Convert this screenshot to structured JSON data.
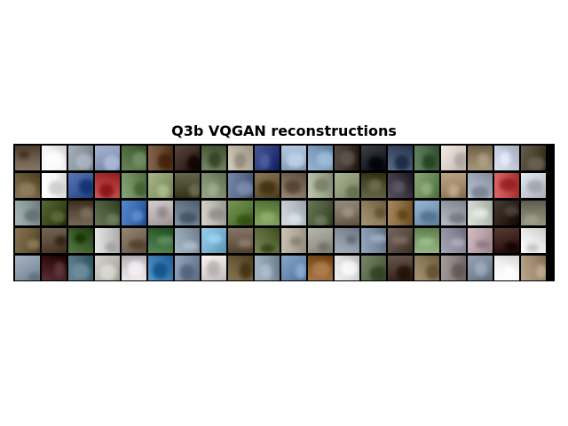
{
  "title": "Q3b VQGAN reconstructions",
  "grid": {
    "rows": 5,
    "columns": 20,
    "tiles": [
      [
        "#6a5a4a",
        "#f0f0f0",
        "#8a94a0",
        "#8c98b8",
        "#4e6a3e",
        "#6a4a30",
        "#3a2a22",
        "#5a6a4a",
        "#b8b0a0",
        "#2a3a7a",
        "#9ab0c8",
        "#7a9ab8",
        "#3a3028",
        "#20242a",
        "#40506a",
        "#4a6a4a",
        "#d8d0c8",
        "#8a7a60",
        "#c0c8d8",
        "#4a4030"
      ],
      [
        "#6a5a3a",
        "#f6f6f6",
        "#3a5a9a",
        "#b03a3a",
        "#6a8a5a",
        "#8a9a6a",
        "#4a4a30",
        "#7a8a6a",
        "#5a6a8a",
        "#6a5a3a",
        "#7a6a58",
        "#a0a890",
        "#909878",
        "#4a4a2a",
        "#3a3440",
        "#6a8a5a",
        "#a08a6a",
        "#a0a8b8",
        "#c04a4a",
        "#c8ccd4"
      ],
      [
        "#8a9a9a",
        "#3a4a1a",
        "#5a4a3a",
        "#4a5a3a",
        "#3a6ab0",
        "#b8b0b0",
        "#6a7a8a",
        "#b8b8b0",
        "#5a7a3a",
        "#6a8a4a",
        "#b8c0c8",
        "#4a5a3a",
        "#7a7060",
        "#8a7a5a",
        "#8a6a40",
        "#7a9ab8",
        "#9aa0a8",
        "#c0c8c0",
        "#2a2018",
        "#7a7a68"
      ],
      [
        "#6a5a3a",
        "#5a4a3a",
        "#3a5a2a",
        "#c8c8c8",
        "#7a6a58",
        "#3a6a3a",
        "#8a9aa8",
        "#7ab0d0",
        "#6a5a4a",
        "#5a6a3a",
        "#b0a898",
        "#9a9a90",
        "#8a94a0",
        "#7a8aa0",
        "#5a4a40",
        "#7a9a6a",
        "#8a8a9a",
        "#b8a0a8",
        "#3a2018",
        "#e8e8e8"
      ],
      [
        "#8a98a8",
        "#3a1418",
        "#4a6a7a",
        "#b8b8b0",
        "#d0ccd0",
        "#3a7ab0",
        "#7a8aa0",
        "#e0d8d8",
        "#6a5a3a",
        "#8a9aa8",
        "#6a8ab0",
        "#8a5a2a",
        "#d8d8d8",
        "#5a6a4a",
        "#4a3a30",
        "#8a7a5a",
        "#8a8080",
        "#7a8898",
        "#f2f2f2",
        "#a08a70"
      ]
    ]
  }
}
